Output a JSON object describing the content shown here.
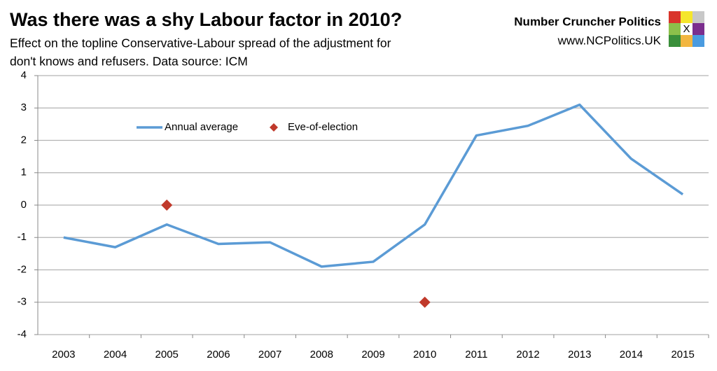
{
  "chart_data": {
    "type": "line",
    "title": "Was there was a shy Labour factor in 2010?",
    "subtitle": [
      "Effect on the topline Conservative-Labour spread of the adjustment for",
      "don't knows and refusers. Data source: ICM"
    ],
    "brand": {
      "name": "Number Cruncher Politics",
      "url": "www.NCPolitics.UK",
      "logo_mark": "X"
    },
    "categories": [
      "2003",
      "2004",
      "2005",
      "2006",
      "2007",
      "2008",
      "2009",
      "2010",
      "2011",
      "2012",
      "2013",
      "2014",
      "2015"
    ],
    "series": [
      {
        "name": "Annual average",
        "color": "#5b9bd5",
        "values": [
          -1.0,
          -1.3,
          -0.6,
          -1.2,
          -1.15,
          -1.9,
          -1.75,
          -0.6,
          2.15,
          2.45,
          3.1,
          1.43,
          0.33
        ]
      },
      {
        "name": "Eve-of-election",
        "color": "#c0392b",
        "type": "scatter",
        "values": [
          null,
          null,
          0,
          null,
          null,
          null,
          null,
          -3,
          null,
          null,
          null,
          null,
          null
        ]
      }
    ],
    "ylim": [
      -4,
      4
    ],
    "yticks": [
      -4,
      -3,
      -2,
      -1,
      0,
      1,
      2,
      3,
      4
    ],
    "grid": true,
    "legend": "top-left"
  }
}
